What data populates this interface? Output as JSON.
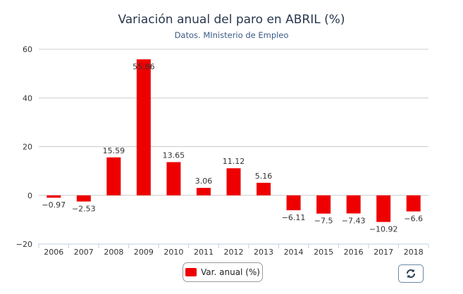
{
  "chart_data": {
    "type": "bar",
    "title": "Variación anual del paro en ABRIL (%)",
    "subtitle": "Datos. MInisterio de Empleo",
    "categories": [
      "2006",
      "2007",
      "2008",
      "2009",
      "2010",
      "2011",
      "2012",
      "2013",
      "2014",
      "2015",
      "2016",
      "2017",
      "2018"
    ],
    "series": [
      {
        "name": "Var. anual (%)",
        "values": [
          -0.97,
          -2.53,
          15.59,
          55.86,
          13.65,
          3.06,
          11.12,
          5.16,
          -6.11,
          -7.5,
          -7.43,
          -10.92,
          -6.6
        ],
        "labels": [
          "−0.97",
          "−2.53",
          "15.59",
          "55.86",
          "13.65",
          "3.06",
          "11.12",
          "5.16",
          "−6.11",
          "−7.5",
          "−7.43",
          "−10.92",
          "−6.6"
        ]
      }
    ],
    "ylim": [
      -20,
      60
    ],
    "yticks": [
      -20,
      0,
      20,
      40,
      60
    ],
    "ytick_labels": [
      "−20",
      "0",
      "20",
      "40",
      "60"
    ],
    "xlabel": "",
    "ylabel": "",
    "grid": true,
    "legend": "bottom-center",
    "colors": {
      "bar": "#ee0000",
      "grid": "#cccccc",
      "axis": "#c0d0e0"
    }
  },
  "toolbar": {
    "refresh_icon": "refresh-icon"
  }
}
